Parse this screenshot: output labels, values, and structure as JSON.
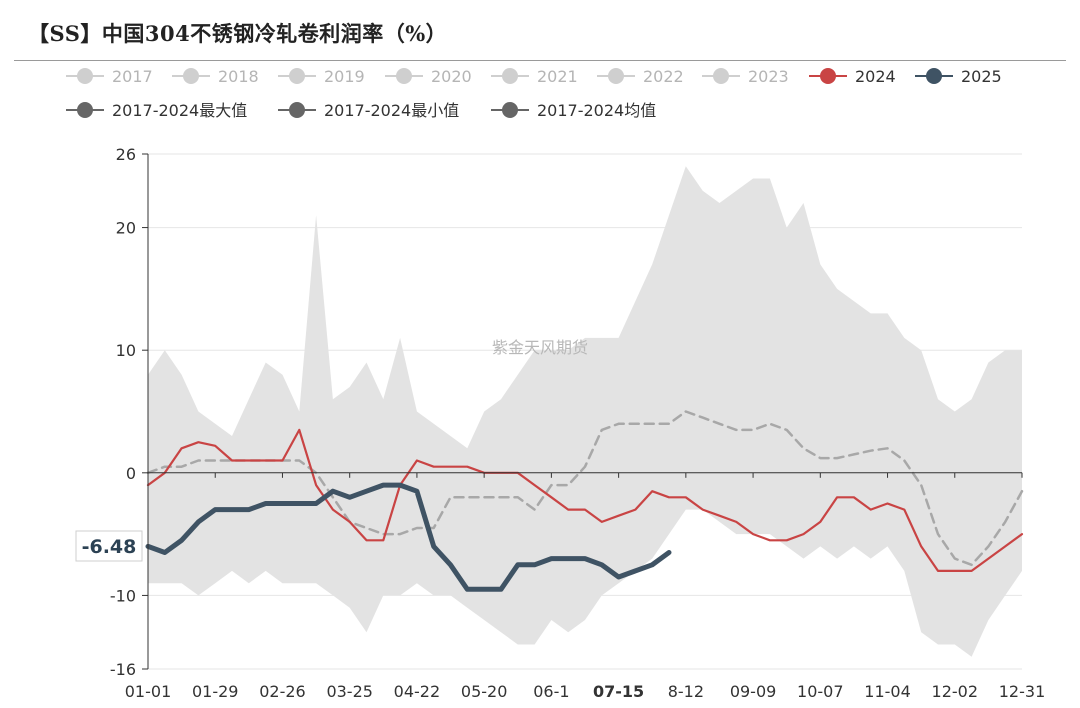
{
  "title": "【SS】中国304不锈钢冷轧卷利润率（%）",
  "watermark": "紫金天风期货",
  "colors": {
    "inactive_legend": "#cfcfcf",
    "inactive_legend_text": "#b5b5b5",
    "band_fill": "#e3e3e3",
    "avg_line": "#a8a8a8",
    "s2024": "#c94444",
    "s2025": "#3f5364",
    "grid": "#e6e6e6",
    "axis": "#333333",
    "stat_legend": "#666666"
  },
  "legend": {
    "row1": [
      {
        "name": "2017",
        "active": false
      },
      {
        "name": "2018",
        "active": false
      },
      {
        "name": "2019",
        "active": false
      },
      {
        "name": "2020",
        "active": false
      },
      {
        "name": "2021",
        "active": false
      },
      {
        "name": "2022",
        "active": false
      },
      {
        "name": "2023",
        "active": false
      },
      {
        "name": "2024",
        "active": true,
        "color": "#c94444"
      },
      {
        "name": "2025",
        "active": true,
        "color": "#3f5364"
      }
    ],
    "row2": [
      {
        "name": "2017-2024最大值"
      },
      {
        "name": "2017-2024最小值"
      },
      {
        "name": "2017-2024均值"
      }
    ]
  },
  "chart_data": {
    "type": "line",
    "x_unit": "week",
    "x_tick_labels": [
      "01-01",
      "01-29",
      "02-26",
      "03-25",
      "04-22",
      "05-20",
      "06-1",
      "07-15",
      "8-12",
      "09-09",
      "10-07",
      "11-04",
      "12-02",
      "12-31"
    ],
    "highlight_tick": "07-15",
    "y_ticks": [
      26,
      20,
      10,
      0,
      -10,
      -16
    ],
    "ylim": [
      -16,
      26
    ],
    "callout_value": "-6.48",
    "weeks": [
      0,
      1,
      2,
      3,
      4,
      5,
      6,
      7,
      8,
      9,
      10,
      11,
      12,
      13,
      14,
      15,
      16,
      17,
      18,
      19,
      20,
      21,
      22,
      23,
      24,
      25,
      26,
      27,
      28,
      29,
      30,
      31,
      32,
      33,
      34,
      35,
      36,
      37,
      38,
      39,
      40,
      41,
      42,
      43,
      44,
      45,
      46,
      47,
      48,
      49,
      50,
      51,
      52
    ],
    "max": [
      8,
      10,
      8,
      5,
      4,
      3,
      6,
      9,
      8,
      5,
      21,
      6,
      7,
      9,
      6,
      11,
      5,
      4,
      3,
      2,
      5,
      6,
      8,
      10,
      10,
      10,
      11,
      11,
      11,
      14,
      17,
      21,
      25,
      23,
      22,
      23,
      24,
      24,
      20,
      22,
      17,
      15,
      14,
      13,
      13,
      11,
      10,
      6,
      5,
      6,
      9,
      10,
      10
    ],
    "min": [
      -9,
      -9,
      -9,
      -10,
      -9,
      -8,
      -9,
      -8,
      -9,
      -9,
      -9,
      -10,
      -11,
      -13,
      -10,
      -10,
      -9,
      -10,
      -10,
      -11,
      -12,
      -13,
      -14,
      -14,
      -12,
      -13,
      -12,
      -10,
      -9,
      -8,
      -7,
      -5,
      -3,
      -3,
      -4,
      -5,
      -5,
      -5,
      -6,
      -7,
      -6,
      -7,
      -6,
      -7,
      -6,
      -8,
      -13,
      -14,
      -14,
      -15,
      -12,
      -10,
      -8
    ],
    "series": [
      {
        "name": "2017-2024均值",
        "values": [
          0,
          0.5,
          0.5,
          1,
          1,
          1,
          1,
          1,
          1,
          1,
          0,
          -2,
          -4,
          -4.5,
          -5,
          -5,
          -4.5,
          -4.5,
          -2,
          -2,
          -2,
          -2,
          -2,
          -3,
          -1,
          -1,
          0.5,
          3.5,
          4,
          4,
          4,
          4,
          5,
          4.5,
          4,
          3.5,
          3.5,
          4,
          3.5,
          2,
          1.2,
          1.2,
          1.5,
          1.8,
          2,
          1,
          -1,
          -5,
          -7,
          -7.5,
          -6,
          -4,
          -1.5
        ]
      },
      {
        "name": "2024",
        "values": [
          -1,
          0,
          2,
          2.5,
          2.2,
          1,
          1,
          1,
          1,
          3.5,
          -1,
          -3,
          -4,
          -5.5,
          -5.5,
          -1,
          1,
          0.5,
          0.5,
          0.5,
          0,
          0,
          0,
          -1,
          -2,
          -3,
          -3,
          -4,
          -3.5,
          -3,
          -1.5,
          -2,
          -2,
          -3,
          -3.5,
          -4,
          -5,
          -5.5,
          -5.5,
          -5,
          -4,
          -2,
          -2,
          -3,
          -2.5,
          -3,
          -6,
          -8,
          -8,
          -8,
          -7,
          -6,
          -5
        ]
      },
      {
        "name": "2025",
        "values": [
          -6,
          -6.5,
          -5.5,
          -4,
          -3,
          -3,
          -3,
          -2.5,
          -2.5,
          -2.5,
          -2.5,
          -1.5,
          -2,
          -1.5,
          -1,
          -1,
          -1.5,
          -6,
          -7.5,
          -9.5,
          -9.5,
          -9.5,
          -7.5,
          -7.5,
          -7,
          -7,
          -7,
          -7.5,
          -8.5,
          -8,
          -7.5,
          -6.5
        ]
      }
    ]
  }
}
